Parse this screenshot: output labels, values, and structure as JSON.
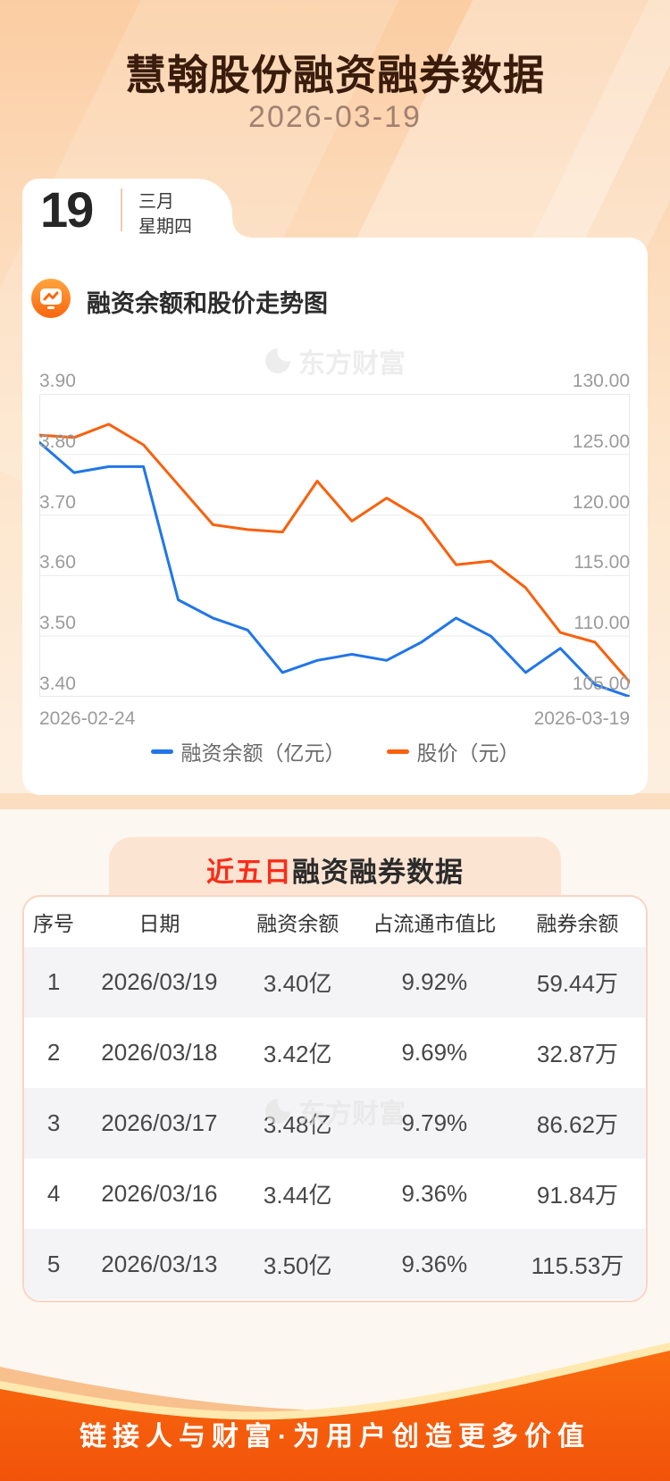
{
  "header": {
    "title": "慧翰股份融资融券数据",
    "date": "2026-03-19"
  },
  "calendar": {
    "day": "19",
    "month": "三月",
    "weekday": "星期四"
  },
  "chart_section": {
    "title": "融资余额和股价走势图",
    "watermark": "东方财富"
  },
  "chart_data": {
    "type": "line",
    "num_points": 18,
    "x_axis_labels": [
      "2026-02-24",
      "2026-03-19"
    ],
    "left_axis": {
      "max": 3.9,
      "min": 3.4,
      "ticks": [
        "3.90",
        "3.80",
        "3.70",
        "3.60",
        "3.50",
        "3.40"
      ]
    },
    "right_axis": {
      "max": 130.0,
      "min": 105.0,
      "ticks": [
        "130.00",
        "125.00",
        "120.00",
        "115.00",
        "110.00",
        "105.00"
      ]
    },
    "grid": true,
    "legend_position": "bottom",
    "series": [
      {
        "name": "融资余额（亿元）",
        "axis": "left",
        "color": "#2176e8",
        "values": [
          3.82,
          3.77,
          3.78,
          3.78,
          3.56,
          3.53,
          3.51,
          3.44,
          3.46,
          3.47,
          3.46,
          3.49,
          3.53,
          3.5,
          3.44,
          3.48,
          3.42,
          3.4
        ]
      },
      {
        "name": "股价（元）",
        "axis": "right",
        "color": "#f8610c",
        "values": [
          126.6,
          126.4,
          127.5,
          125.8,
          122.5,
          119.2,
          118.8,
          118.6,
          122.8,
          119.5,
          121.4,
          119.7,
          115.9,
          116.2,
          114.0,
          110.3,
          109.5,
          106.2
        ]
      }
    ]
  },
  "table_section": {
    "title_highlight": "近五日",
    "title_rest": "融资融券数据",
    "watermark": "东方财富",
    "columns": [
      "序号",
      "日期",
      "融资余额",
      "占流通市值比",
      "融券余额"
    ],
    "rows": [
      [
        "1",
        "2026/03/19",
        "3.40亿",
        "9.92%",
        "59.44万"
      ],
      [
        "2",
        "2026/03/18",
        "3.42亿",
        "9.69%",
        "32.87万"
      ],
      [
        "3",
        "2026/03/17",
        "3.48亿",
        "9.79%",
        "86.62万"
      ],
      [
        "4",
        "2026/03/16",
        "3.44亿",
        "9.36%",
        "91.84万"
      ],
      [
        "5",
        "2026/03/13",
        "3.50亿",
        "9.36%",
        "115.53万"
      ]
    ]
  },
  "footer": {
    "slogan": "链接人与财富·为用户创造更多价值"
  },
  "colors": {
    "margin_line": "#2176e8",
    "price_line": "#f8610c",
    "title_text": "#3a1c0c",
    "highlight_red": "#fa2c19",
    "banner_bg": "#fce4d3",
    "table_border": "#fad5c4",
    "row_alt_bg": "#f4f4f6",
    "footer_orange": "#f4590a",
    "background_peach": "#fbcda2"
  }
}
